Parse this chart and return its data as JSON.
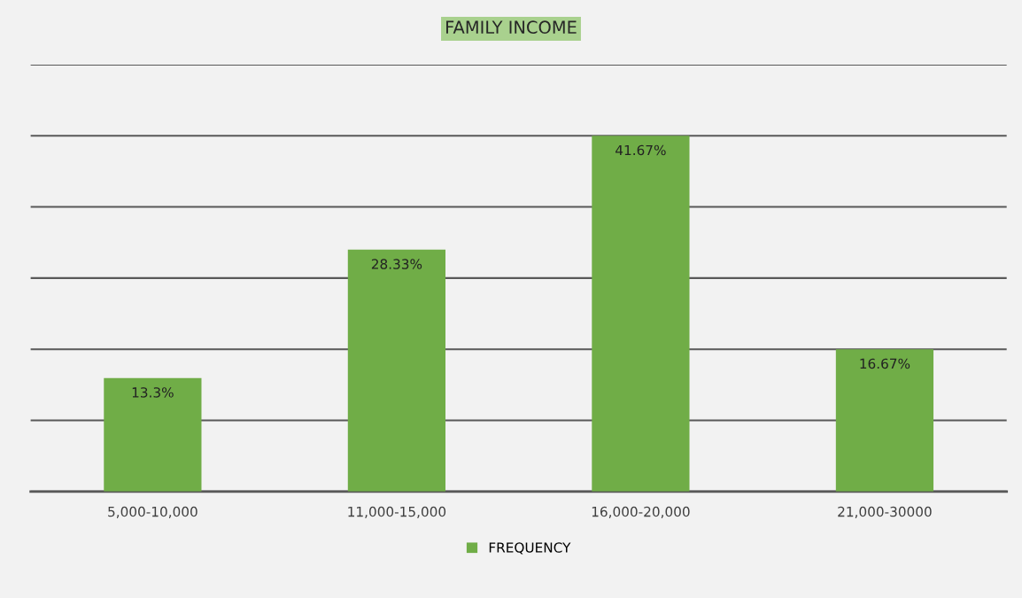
{
  "chart_data": {
    "type": "bar",
    "title": "FAMILY INCOME",
    "categories": [
      "5,000-10,000",
      "11,000-15,000",
      "16,000-20,000",
      "21,000-30000"
    ],
    "series": [
      {
        "name": "FREQUENCY",
        "color": "#70ad47",
        "values": [
          13.3,
          28.33,
          41.67,
          16.67
        ],
        "value_labels": [
          "13.3%",
          "28.33%",
          "41.67%",
          "16.67%"
        ]
      }
    ],
    "ylim": [
      0,
      50
    ],
    "yticks": [
      {
        "value": 0,
        "label": null
      },
      {
        "value": 8.33,
        "label": null
      },
      {
        "value": 16.67,
        "label": null
      },
      {
        "value": 25,
        "label": null
      },
      {
        "value": 33.33,
        "label": null
      },
      {
        "value": 41.67,
        "label": null
      },
      {
        "value": 50,
        "label": null
      }
    ],
    "grid": "y",
    "legend": "bottom"
  }
}
